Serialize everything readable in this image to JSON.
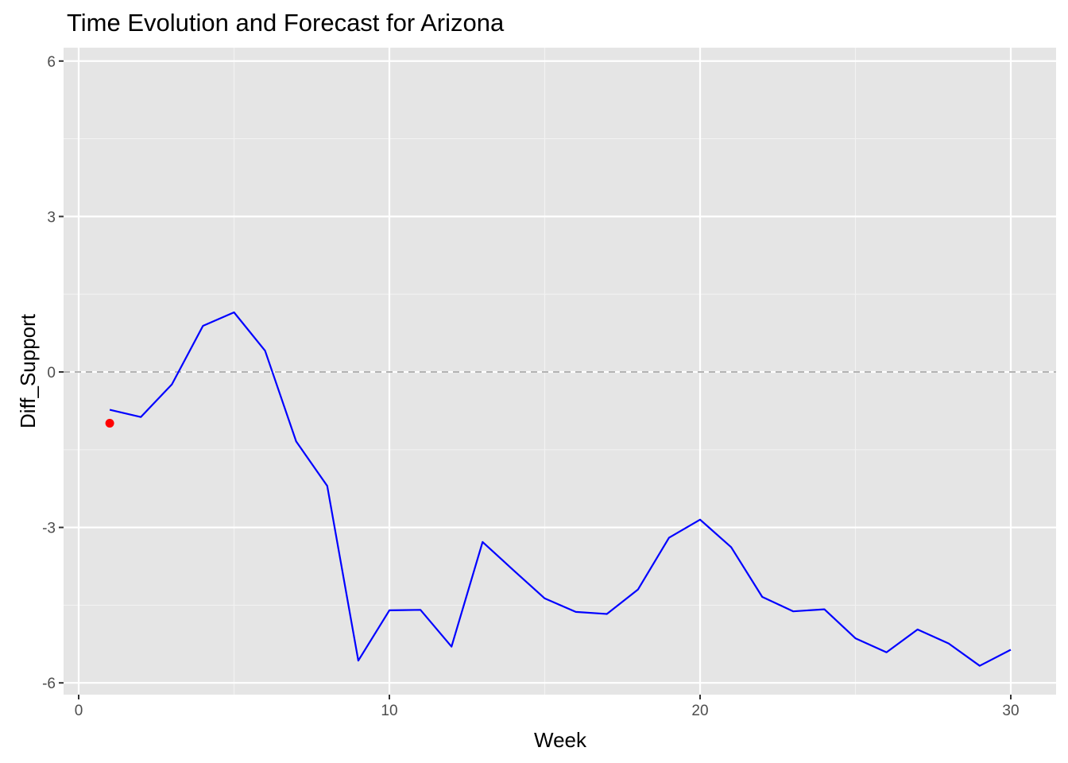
{
  "chart_data": {
    "type": "line",
    "title": "Time Evolution and Forecast for Arizona",
    "xlabel": "Week",
    "ylabel": "Diff_Support",
    "xlim": [
      0,
      30
    ],
    "ylim": [
      -6,
      6
    ],
    "x_ticks": [
      0,
      10,
      20,
      30
    ],
    "y_ticks": [
      -6,
      -3,
      0,
      3,
      6
    ],
    "x_tick_labels": [
      "0",
      "10",
      "20",
      "30"
    ],
    "y_tick_labels": [
      "-6",
      "-3",
      "0",
      "3",
      "6"
    ],
    "grid": true,
    "reference_line": {
      "y": 0,
      "style": "dashed",
      "color": "#b3b3b3"
    },
    "series": [
      {
        "type": "line",
        "color": "#0000ff",
        "x": [
          1,
          2,
          3,
          4,
          5,
          6,
          7,
          8,
          9,
          10,
          11,
          12,
          13,
          14,
          15,
          16,
          17,
          18,
          19,
          20,
          21,
          22,
          23,
          24,
          25,
          26,
          27,
          28,
          29,
          30
        ],
        "y": [
          -0.73,
          -0.87,
          -0.24,
          0.89,
          1.15,
          0.41,
          -1.34,
          -2.2,
          -5.57,
          -4.6,
          -4.59,
          -5.3,
          -3.28,
          -3.83,
          -4.37,
          -4.63,
          -4.67,
          -4.2,
          -3.2,
          -2.85,
          -3.38,
          -4.34,
          -4.62,
          -4.58,
          -5.14,
          -5.41,
          -4.97,
          -5.24,
          -5.67,
          -5.36
        ]
      },
      {
        "type": "point",
        "color": "#ff0000",
        "x": [
          1
        ],
        "y": [
          -0.99
        ]
      }
    ]
  }
}
